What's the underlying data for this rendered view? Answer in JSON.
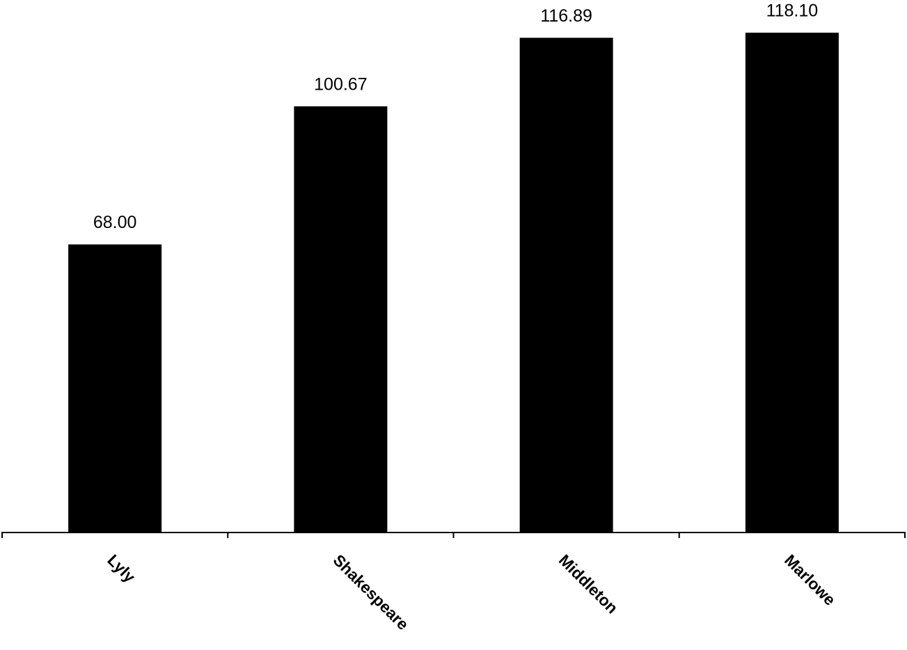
{
  "chart_data": {
    "type": "bar",
    "categories": [
      "Lyly",
      "Shakespeare",
      "Middleton",
      "Marlowe"
    ],
    "values": [
      68,
      100.67,
      116.89,
      118.1
    ],
    "value_labels": [
      "68.00",
      "100.67",
      "116.89",
      "118.10"
    ],
    "color": "#000000",
    "ylim": [
      0,
      118.1
    ]
  }
}
